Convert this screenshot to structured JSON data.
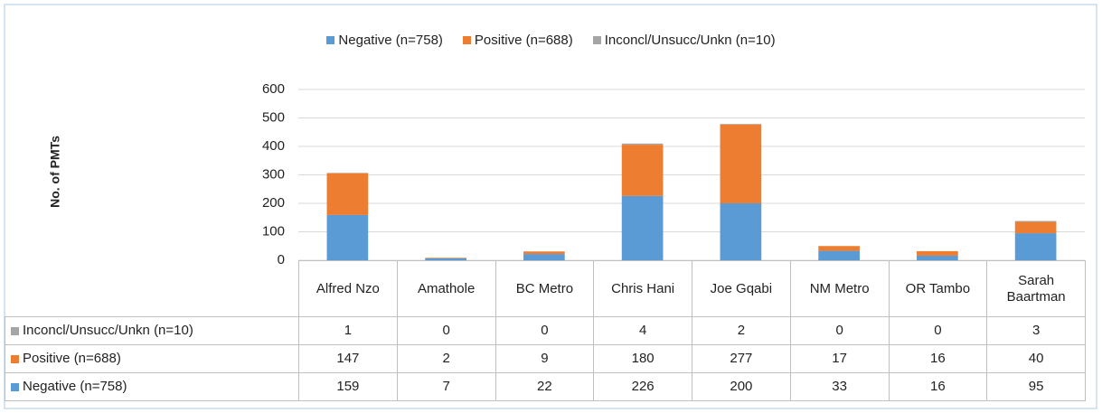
{
  "chart_data": {
    "type": "stacked_bar",
    "y_label": "No. of PMTs",
    "categories": [
      "Alfred Nzo",
      "Amathole",
      "BC Metro",
      "Chris Hani",
      "Joe Gqabi",
      "NM Metro",
      "OR Tambo",
      "Sarah Baartman"
    ],
    "series": [
      {
        "name": "Negative (n=758)",
        "color": "#5b9bd5",
        "values": [
          159,
          7,
          22,
          226,
          200,
          33,
          16,
          95
        ]
      },
      {
        "name": "Positive (n=688)",
        "color": "#ed7d31",
        "values": [
          147,
          2,
          9,
          180,
          277,
          17,
          16,
          40
        ]
      },
      {
        "name": "Inconcl/Unsucc/Unkn (n=10)",
        "color": "#a5a5a5",
        "values": [
          1,
          0,
          0,
          4,
          2,
          0,
          0,
          3
        ]
      }
    ],
    "ylim": [
      0,
      600
    ],
    "yticks": [
      0,
      100,
      200,
      300,
      400,
      500,
      600
    ],
    "grid": true,
    "legend": "top",
    "data_table": true
  }
}
